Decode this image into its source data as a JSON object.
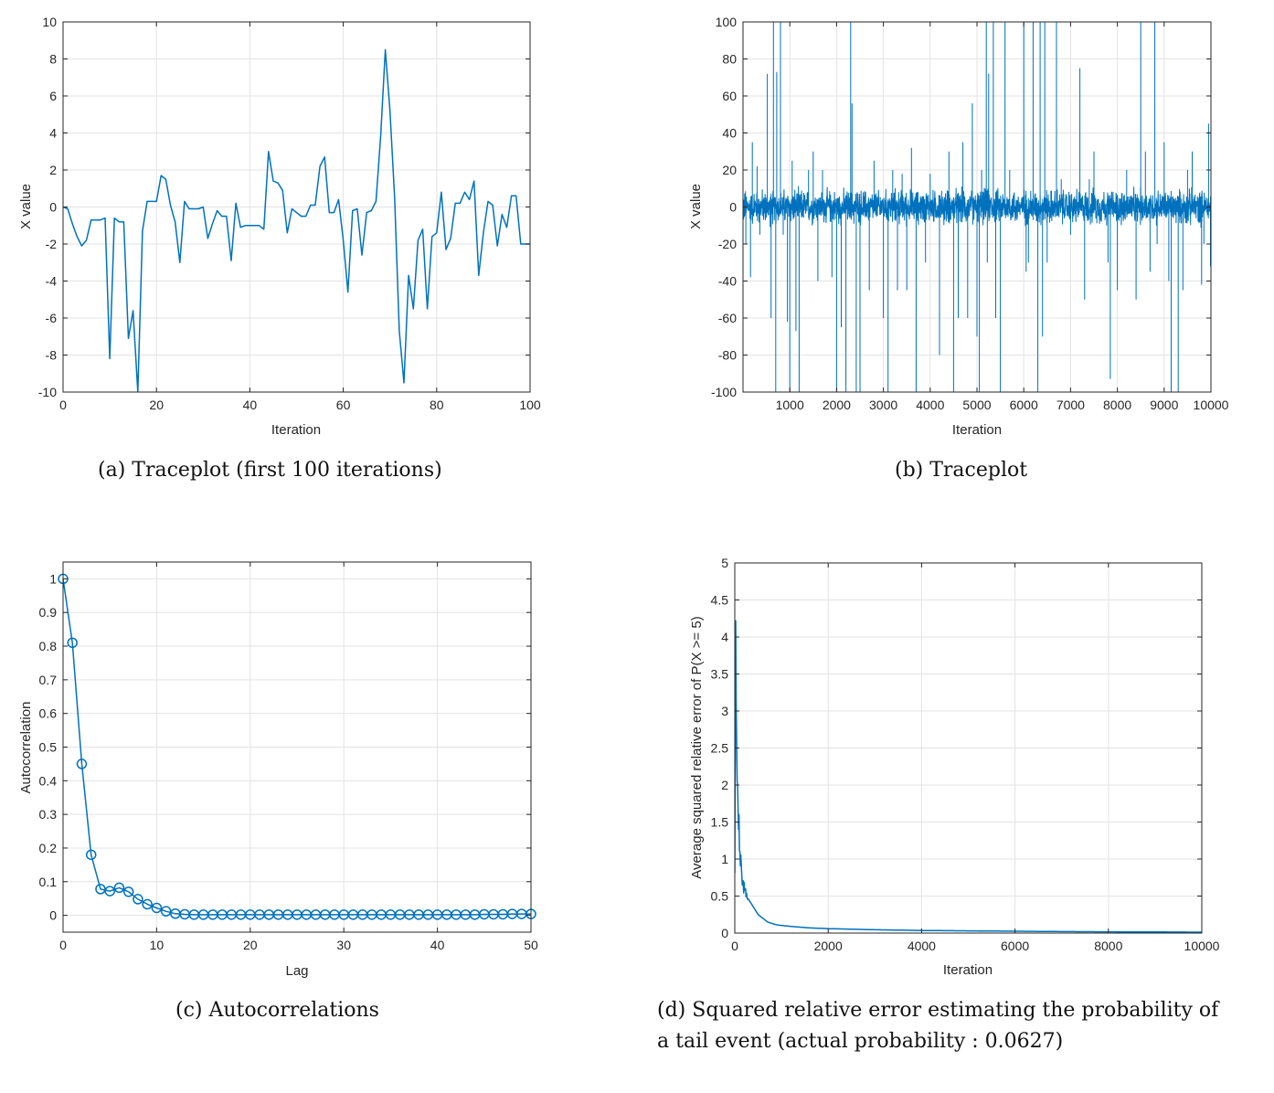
{
  "colors": {
    "series": "#0072BD",
    "grid": "#e3e3e3",
    "axis": "#262626"
  },
  "captions": {
    "a": "(a) Traceplot (first 100 iterations)",
    "b": "(b) Traceplot",
    "c": "(c) Autocorrelations",
    "d_line1": "(d) Squared relative error estimating the probability of",
    "d_line2": "a tail event (actual probability : 0.0627)"
  },
  "chart_data": [
    {
      "id": "a",
      "type": "line",
      "xlabel": "Iteration",
      "ylabel": "X value",
      "xlim": [
        0,
        100
      ],
      "ylim": [
        -10,
        10
      ],
      "xticks": [
        0,
        20,
        40,
        60,
        80,
        100
      ],
      "yticks": [
        -10,
        -8,
        -6,
        -4,
        -2,
        0,
        2,
        4,
        6,
        8,
        10
      ],
      "grid": true,
      "x": [
        0,
        1,
        2,
        3,
        4,
        5,
        6,
        7,
        8,
        9,
        10,
        11,
        12,
        13,
        14,
        15,
        16,
        17,
        18,
        19,
        20,
        21,
        22,
        23,
        24,
        25,
        26,
        27,
        28,
        29,
        30,
        31,
        32,
        33,
        34,
        35,
        36,
        37,
        38,
        39,
        40,
        41,
        42,
        43,
        44,
        45,
        46,
        47,
        48,
        49,
        50,
        51,
        52,
        53,
        54,
        55,
        56,
        57,
        58,
        59,
        60,
        61,
        62,
        63,
        64,
        65,
        66,
        67,
        68,
        69,
        70,
        71,
        72,
        73,
        74,
        75,
        76,
        77,
        78,
        79,
        80,
        81,
        82,
        83,
        84,
        85,
        86,
        87,
        88,
        89,
        90,
        91,
        92,
        93,
        94,
        95,
        96,
        97,
        98,
        99,
        100
      ],
      "y": [
        0,
        -0.1,
        -0.9,
        -1.6,
        -2.1,
        -1.8,
        -0.7,
        -0.7,
        -0.7,
        -0.6,
        -8.2,
        -0.6,
        -0.8,
        -0.8,
        -7.1,
        -5.6,
        -10,
        -1.3,
        0.3,
        0.3,
        0.3,
        1.7,
        1.5,
        0.1,
        -0.8,
        -3.0,
        0.3,
        -0.1,
        -0.1,
        -0.1,
        0.0,
        -1.7,
        -0.9,
        -0.2,
        -0.5,
        -0.5,
        -2.9,
        0.2,
        -1.1,
        -1.0,
        -1.0,
        -1.0,
        -1.0,
        -1.2,
        3.0,
        1.4,
        1.3,
        0.9,
        -1.4,
        -0.1,
        -0.3,
        -0.5,
        -0.5,
        0.1,
        0.1,
        2.2,
        2.7,
        -0.3,
        -0.3,
        0.4,
        -1.8,
        -4.6,
        -0.2,
        -0.1,
        -2.6,
        -0.3,
        -0.2,
        0.3,
        3.8,
        8.5,
        5.2,
        0.5,
        -6.7,
        -9.5,
        -3.7,
        -5.5,
        -1.8,
        -1.2,
        -5.5,
        -1.6,
        -1.4,
        0.8,
        -2.3,
        -1.7,
        0.2,
        0.2,
        0.8,
        0.4,
        1.4,
        -3.7,
        -1.4,
        0.3,
        0.1,
        -2.1,
        -0.4,
        -1.1,
        0.6,
        0.6,
        -2.0,
        -2.0,
        -2.0
      ]
    },
    {
      "id": "b",
      "type": "line",
      "xlabel": "Iteration",
      "ylabel": "X value",
      "xlim": [
        0,
        10000
      ],
      "ylim": [
        -100,
        100
      ],
      "xticks": [
        1000,
        2000,
        3000,
        4000,
        5000,
        6000,
        7000,
        8000,
        9000,
        10000
      ],
      "yticks": [
        -100,
        -80,
        -60,
        -40,
        -20,
        0,
        20,
        40,
        60,
        80,
        100
      ],
      "grid": true,
      "noise_amplitude": 12,
      "spikes": [
        [
          60,
          -20
        ],
        [
          160,
          -38
        ],
        [
          200,
          35
        ],
        [
          300,
          22
        ],
        [
          360,
          -15
        ],
        [
          520,
          72
        ],
        [
          600,
          -60
        ],
        [
          650,
          100
        ],
        [
          700,
          -100
        ],
        [
          720,
          73
        ],
        [
          800,
          100
        ],
        [
          860,
          -15
        ],
        [
          950,
          -62
        ],
        [
          1000,
          -100
        ],
        [
          1050,
          25
        ],
        [
          1130,
          -67
        ],
        [
          1200,
          -100
        ],
        [
          1400,
          20
        ],
        [
          1500,
          30
        ],
        [
          1600,
          -40
        ],
        [
          1700,
          20
        ],
        [
          1900,
          -38
        ],
        [
          2000,
          -100
        ],
        [
          2100,
          -65
        ],
        [
          2200,
          -100
        ],
        [
          2300,
          100
        ],
        [
          2330,
          56
        ],
        [
          2420,
          -100
        ],
        [
          2500,
          -100
        ],
        [
          2700,
          -45
        ],
        [
          2800,
          25
        ],
        [
          3000,
          -60
        ],
        [
          3100,
          -100
        ],
        [
          3200,
          20
        ],
        [
          3300,
          -45
        ],
        [
          3400,
          18
        ],
        [
          3500,
          -45
        ],
        [
          3600,
          32
        ],
        [
          3700,
          -100
        ],
        [
          3900,
          -30
        ],
        [
          4000,
          18
        ],
        [
          4200,
          -80
        ],
        [
          4400,
          30
        ],
        [
          4500,
          -100
        ],
        [
          4600,
          -60
        ],
        [
          4700,
          35
        ],
        [
          4800,
          -60
        ],
        [
          4900,
          56
        ],
        [
          5000,
          -70
        ],
        [
          5050,
          -100
        ],
        [
          5100,
          20
        ],
        [
          5200,
          100
        ],
        [
          5220,
          -30
        ],
        [
          5250,
          72
        ],
        [
          5350,
          100
        ],
        [
          5400,
          -60
        ],
        [
          5500,
          -100
        ],
        [
          5600,
          100
        ],
        [
          5700,
          20
        ],
        [
          6000,
          100
        ],
        [
          6050,
          -35
        ],
        [
          6100,
          -30
        ],
        [
          6200,
          100
        ],
        [
          6300,
          -100
        ],
        [
          6350,
          100
        ],
        [
          6400,
          -70
        ],
        [
          6450,
          100
        ],
        [
          6500,
          -30
        ],
        [
          6700,
          100
        ],
        [
          6800,
          15
        ],
        [
          7000,
          -15
        ],
        [
          7200,
          75
        ],
        [
          7300,
          -50
        ],
        [
          7400,
          15
        ],
        [
          7500,
          30
        ],
        [
          7800,
          -30
        ],
        [
          7850,
          -93
        ],
        [
          8000,
          -45
        ],
        [
          8200,
          20
        ],
        [
          8400,
          -50
        ],
        [
          8500,
          100
        ],
        [
          8600,
          30
        ],
        [
          8700,
          -35
        ],
        [
          8800,
          100
        ],
        [
          8850,
          -20
        ],
        [
          9000,
          35
        ],
        [
          9100,
          -40
        ],
        [
          9150,
          -100
        ],
        [
          9300,
          -100
        ],
        [
          9400,
          -45
        ],
        [
          9500,
          20
        ],
        [
          9600,
          30
        ],
        [
          9800,
          -42
        ],
        [
          9850,
          -20
        ],
        [
          9950,
          45
        ],
        [
          9990,
          -32
        ]
      ]
    },
    {
      "id": "c",
      "type": "line",
      "xlabel": "Lag",
      "ylabel": "Autocorrelation",
      "xlim": [
        0,
        50
      ],
      "ylim": [
        -0.05,
        1.05
      ],
      "xticks": [
        0,
        10,
        20,
        30,
        40,
        50
      ],
      "yticks": [
        0,
        0.1,
        0.2,
        0.3,
        0.4,
        0.5,
        0.6,
        0.7,
        0.8,
        0.9,
        1
      ],
      "grid": true,
      "marker": "circle",
      "x": [
        0,
        1,
        2,
        3,
        4,
        5,
        6,
        7,
        8,
        9,
        10,
        11,
        12,
        13,
        14,
        15,
        16,
        17,
        18,
        19,
        20,
        21,
        22,
        23,
        24,
        25,
        26,
        27,
        28,
        29,
        30,
        31,
        32,
        33,
        34,
        35,
        36,
        37,
        38,
        39,
        40,
        41,
        42,
        43,
        44,
        45,
        46,
        47,
        48,
        49,
        50
      ],
      "y": [
        1,
        0.81,
        0.45,
        0.18,
        0.078,
        0.072,
        0.082,
        0.07,
        0.048,
        0.033,
        0.022,
        0.012,
        0.005,
        0.003,
        0.002,
        0.002,
        0.002,
        0.002,
        0.002,
        0.002,
        0.002,
        0.002,
        0.002,
        0.002,
        0.002,
        0.002,
        0.002,
        0.002,
        0.002,
        0.002,
        0.002,
        0.002,
        0.002,
        0.002,
        0.002,
        0.002,
        0.002,
        0.002,
        0.002,
        0.002,
        0.002,
        0.002,
        0.002,
        0.002,
        0.002,
        0.003,
        0.003,
        0.003,
        0.004,
        0.004,
        0.004
      ]
    },
    {
      "id": "d",
      "type": "line",
      "xlabel": "Iteration",
      "ylabel": "Average squared relative error of P(X >= 5)",
      "xlim": [
        0,
        10000
      ],
      "ylim": [
        0,
        5
      ],
      "xticks": [
        0,
        2000,
        4000,
        6000,
        8000,
        10000
      ],
      "yticks": [
        0,
        0.5,
        1,
        1.5,
        2,
        2.5,
        3,
        3.5,
        4,
        4.5,
        5
      ],
      "grid": true,
      "x": [
        0,
        20,
        40,
        60,
        80,
        100,
        130,
        160,
        200,
        250,
        300,
        400,
        500,
        700,
        900,
        1200,
        1600,
        2000,
        3000,
        4000,
        5000,
        6000,
        7000,
        8000,
        9000,
        10000
      ],
      "y": [
        1.0,
        4.3,
        2.5,
        2.1,
        1.6,
        1.2,
        0.9,
        0.75,
        0.6,
        0.5,
        0.45,
        0.35,
        0.25,
        0.15,
        0.11,
        0.09,
        0.07,
        0.06,
        0.045,
        0.035,
        0.03,
        0.025,
        0.02,
        0.017,
        0.015,
        0.012
      ]
    }
  ]
}
